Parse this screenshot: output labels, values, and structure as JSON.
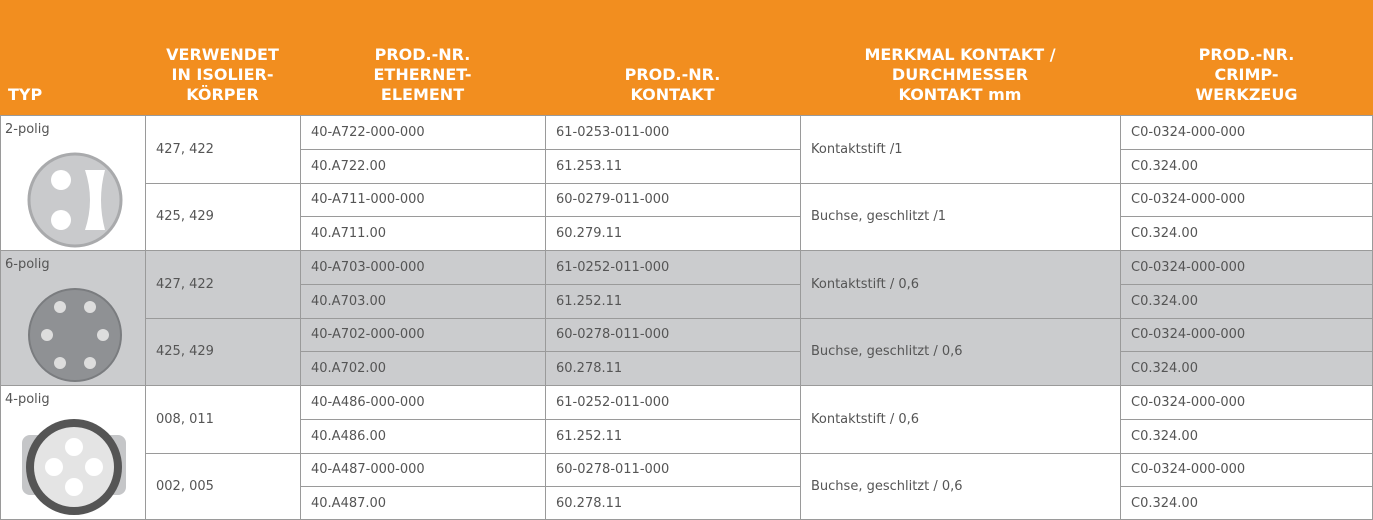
{
  "table": {
    "headers": [
      [
        "TYP"
      ],
      [
        "VERWENDET",
        "IN ISOLIER-",
        "KÖRPER"
      ],
      [
        "PROD.-NR.",
        "ETHERNET-",
        "ELEMENT"
      ],
      [
        "PROD.-NR.",
        "KONTAKT"
      ],
      [
        "MERKMAL KONTAKT /",
        "DURCHMESSER",
        "KONTAKT mm"
      ],
      [
        "PROD.-NR.",
        "CRIMP-",
        "WERKZEUG"
      ]
    ],
    "groups": [
      {
        "type": "2-polig",
        "subgroups": [
          {
            "isolierkoerper": "427, 422",
            "merkmal": "Kontaktstift /1",
            "rows": [
              {
                "ethernet": "40-A722-000-000",
                "kontakt": "61-0253-011-000",
                "crimp": "C0-0324-000-000"
              },
              {
                "ethernet": "40.A722.00",
                "kontakt": "61.253.11",
                "crimp": "C0.324.00"
              }
            ]
          },
          {
            "isolierkoerper": "425, 429",
            "merkmal": "Buchse, geschlitzt /1",
            "rows": [
              {
                "ethernet": "40-A711-000-000",
                "kontakt": "60-0279-011-000",
                "crimp": "C0-0324-000-000"
              },
              {
                "ethernet": "40.A711.00",
                "kontakt": "60.279.11",
                "crimp": "C0.324.00"
              }
            ]
          }
        ]
      },
      {
        "type": "6-polig",
        "subgroups": [
          {
            "isolierkoerper": "427, 422",
            "merkmal": "Kontaktstift / 0,6",
            "rows": [
              {
                "ethernet": "40-A703-000-000",
                "kontakt": "61-0252-011-000",
                "crimp": "C0-0324-000-000"
              },
              {
                "ethernet": "40.A703.00",
                "kontakt": "61.252.11",
                "crimp": "C0.324.00"
              }
            ]
          },
          {
            "isolierkoerper": "425, 429",
            "merkmal": "Buchse, geschlitzt / 0,6",
            "rows": [
              {
                "ethernet": "40-A702-000-000",
                "kontakt": "60-0278-011-000",
                "crimp": "C0-0324-000-000"
              },
              {
                "ethernet": "40.A702.00",
                "kontakt": "60.278.11",
                "crimp": "C0.324.00"
              }
            ]
          }
        ]
      },
      {
        "type": "4-polig",
        "subgroups": [
          {
            "isolierkoerper": "008, 011",
            "merkmal": "Kontaktstift / 0,6",
            "rows": [
              {
                "ethernet": "40-A486-000-000",
                "kontakt": "61-0252-011-000",
                "crimp": "C0-0324-000-000"
              },
              {
                "ethernet": "40.A486.00",
                "kontakt": "61.252.11",
                "crimp": "C0.324.00"
              }
            ]
          },
          {
            "isolierkoerper": "002, 005",
            "merkmal": "Buchse, geschlitzt / 0,6",
            "rows": [
              {
                "ethernet": "40-A487-000-000",
                "kontakt": "60-0278-011-000",
                "crimp": "C0-0324-000-000"
              },
              {
                "ethernet": "40.A487.00",
                "kontakt": "60.278.11",
                "crimp": "C0.324.00"
              }
            ]
          }
        ]
      }
    ]
  }
}
